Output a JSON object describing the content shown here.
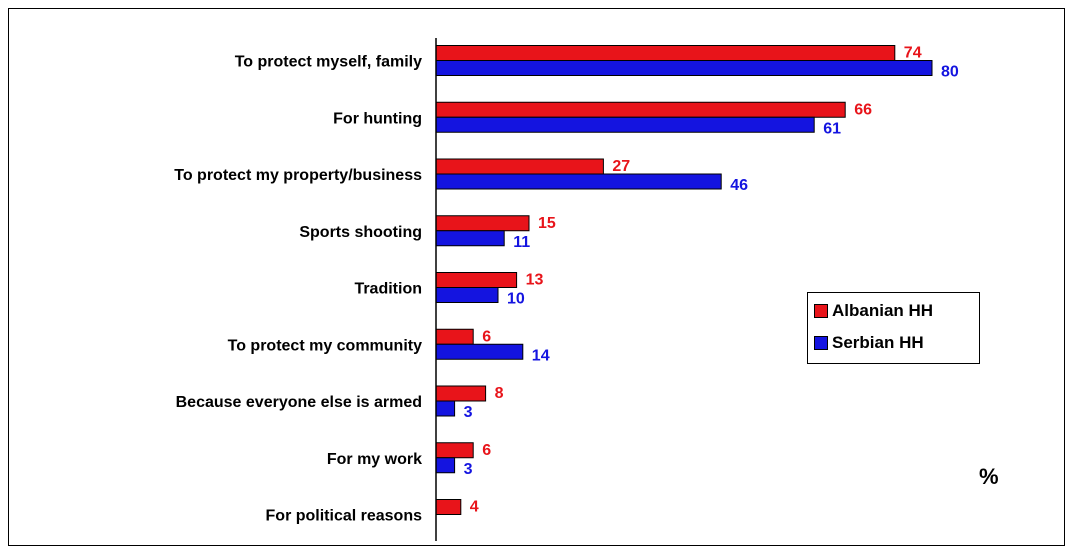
{
  "chart_data": {
    "type": "bar",
    "orientation": "horizontal",
    "categories": [
      "To protect myself, family",
      "For hunting",
      "To protect my property/business",
      "Sports shooting",
      "Tradition",
      "To protect my community",
      "Because everyone else is armed",
      "For my work",
      "For political reasons"
    ],
    "series": [
      {
        "name": "Albanian HH",
        "color": "#e8141a",
        "label_color": "#e8141a",
        "values": [
          74,
          66,
          27,
          15,
          13,
          6,
          8,
          6,
          4
        ]
      },
      {
        "name": "Serbian HH",
        "color": "#1414e0",
        "label_color": "#1414e0",
        "values": [
          80,
          61,
          46,
          11,
          10,
          14,
          3,
          3,
          null
        ]
      }
    ],
    "unit": "%",
    "title": "",
    "xlabel": "",
    "ylabel": "",
    "xlim": [
      0,
      100
    ],
    "grid": false,
    "legend_position": "right"
  }
}
